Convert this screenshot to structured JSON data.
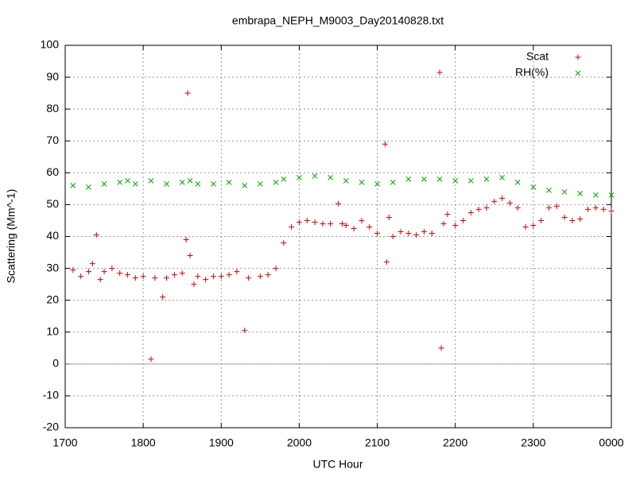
{
  "chart_data": {
    "type": "scatter",
    "title": "embrapa_NEPH_M9003_Day20140828.txt",
    "xlabel": "UTC Hour",
    "ylabel": "Scattering (Mm^-1)",
    "xlim": [
      17,
      24
    ],
    "ylim": [
      -20,
      100
    ],
    "xticks": [
      {
        "value": 17,
        "label": "1700"
      },
      {
        "value": 18,
        "label": "1800"
      },
      {
        "value": 19,
        "label": "1900"
      },
      {
        "value": 20,
        "label": "2000"
      },
      {
        "value": 21,
        "label": "2100"
      },
      {
        "value": 22,
        "label": "2200"
      },
      {
        "value": 23,
        "label": "2300"
      },
      {
        "value": 24,
        "label": "0000"
      }
    ],
    "yticks": [
      -20,
      -10,
      0,
      10,
      20,
      30,
      40,
      50,
      60,
      70,
      80,
      90,
      100
    ],
    "grid": true,
    "legend": "top-right",
    "series": [
      {
        "name": "Scat",
        "color": "#dd0000",
        "marker": "+",
        "x": [
          17.1,
          17.2,
          17.3,
          17.35,
          17.4,
          17.45,
          17.5,
          17.6,
          17.7,
          17.8,
          17.9,
          18.0,
          18.1,
          18.15,
          18.25,
          18.3,
          18.4,
          18.5,
          18.55,
          18.57,
          18.6,
          18.65,
          18.7,
          18.8,
          18.9,
          19.0,
          19.1,
          19.2,
          19.3,
          19.35,
          19.5,
          19.6,
          19.7,
          19.8,
          19.9,
          20.0,
          20.1,
          20.2,
          20.3,
          20.4,
          20.5,
          20.55,
          20.6,
          20.7,
          20.8,
          20.9,
          21.0,
          21.1,
          21.12,
          21.15,
          21.2,
          21.3,
          21.4,
          21.5,
          21.6,
          21.7,
          21.8,
          21.82,
          21.85,
          21.9,
          22.0,
          22.1,
          22.2,
          22.3,
          22.4,
          22.5,
          22.6,
          22.7,
          22.8,
          22.9,
          23.0,
          23.1,
          23.2,
          23.3,
          23.4,
          23.5,
          23.6,
          23.7,
          23.8,
          23.9,
          24.0
        ],
        "values": [
          29.5,
          27.5,
          29,
          31.5,
          40.5,
          26.5,
          29,
          30,
          28.5,
          28,
          27,
          27.5,
          1.5,
          27,
          21,
          27,
          28,
          28.5,
          39,
          85,
          34,
          25,
          27.5,
          26.5,
          27.5,
          27.5,
          28,
          29,
          10.5,
          27,
          27.5,
          28,
          30,
          38,
          43,
          44.5,
          45,
          44.5,
          44,
          44,
          50.3,
          44,
          43.5,
          42.5,
          45,
          43,
          41,
          69,
          32,
          46,
          40,
          41.5,
          41,
          40.5,
          41.5,
          41,
          91.5,
          5,
          44,
          47,
          43.5,
          45,
          47.5,
          48.5,
          49,
          51,
          52,
          50.5,
          49,
          43,
          43.5,
          45,
          49,
          49.5,
          46,
          45,
          45.5,
          48.5,
          49,
          48.5,
          48
        ]
      },
      {
        "name": "RH(%)",
        "color": "#00aa00",
        "marker": "x",
        "x": [
          17.1,
          17.3,
          17.5,
          17.7,
          17.8,
          17.9,
          18.1,
          18.3,
          18.5,
          18.6,
          18.7,
          18.9,
          19.1,
          19.3,
          19.5,
          19.7,
          19.8,
          20.0,
          20.2,
          20.4,
          20.6,
          20.8,
          21.0,
          21.2,
          21.4,
          21.6,
          21.8,
          22.0,
          22.2,
          22.4,
          22.6,
          22.8,
          23.0,
          23.2,
          23.4,
          23.6,
          23.8,
          24.0
        ],
        "values": [
          56,
          55.5,
          56.5,
          57,
          57.5,
          56.5,
          57.5,
          56.5,
          57,
          57.5,
          56.5,
          56.5,
          57,
          56,
          56.5,
          57,
          58,
          58.5,
          59,
          58.5,
          57.5,
          57,
          56.5,
          57,
          58,
          58,
          58,
          57.5,
          57.5,
          58,
          58.5,
          57,
          55.5,
          54.5,
          54,
          53.5,
          53,
          53
        ]
      }
    ]
  }
}
